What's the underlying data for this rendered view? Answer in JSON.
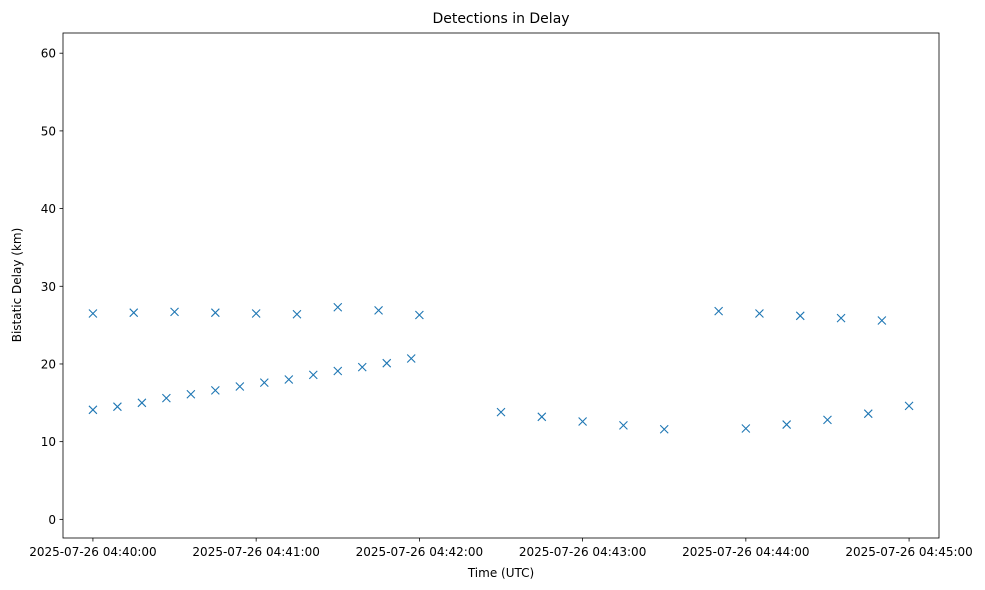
{
  "chart_data": {
    "type": "scatter",
    "title": "Detections in Delay",
    "xlabel": "Time (UTC)",
    "ylabel": "Bistatic Delay (km)",
    "x_unit": "time",
    "xlim": [
      "2025-07-26 04:39:49",
      "2025-07-26 04:45:11"
    ],
    "ylim": [
      -2.4,
      62.6
    ],
    "x_ticks": [
      "2025-07-26 04:40:00",
      "2025-07-26 04:41:00",
      "2025-07-26 04:42:00",
      "2025-07-26 04:43:00",
      "2025-07-26 04:44:00",
      "2025-07-26 04:45:00"
    ],
    "y_ticks": [
      0,
      10,
      20,
      30,
      40,
      50,
      60
    ],
    "marker": "x",
    "color": "#1f77b4",
    "grid": false,
    "series": [
      {
        "x": [
          "04:40:00",
          "04:40:09",
          "04:40:18",
          "04:40:27",
          "04:40:36",
          "04:40:45",
          "04:40:54",
          "04:41:03",
          "04:41:12",
          "04:41:21",
          "04:41:30",
          "04:41:39",
          "04:41:48",
          "04:41:57"
        ],
        "y": [
          14.1,
          14.5,
          15.0,
          15.6,
          16.1,
          16.6,
          17.1,
          17.6,
          18.0,
          18.6,
          19.1,
          19.6,
          20.1,
          20.7
        ]
      },
      {
        "x": [
          "04:40:00",
          "04:40:15",
          "04:40:30",
          "04:40:45",
          "04:41:00",
          "04:41:15",
          "04:41:30",
          "04:41:45",
          "04:42:00"
        ],
        "y": [
          26.5,
          26.6,
          26.7,
          26.6,
          26.5,
          26.4,
          27.3,
          26.9,
          26.3
        ]
      },
      {
        "x": [
          "04:42:30",
          "04:42:45",
          "04:43:00",
          "04:43:15",
          "04:43:30"
        ],
        "y": [
          13.8,
          13.2,
          12.6,
          12.1,
          11.6
        ]
      },
      {
        "x": [
          "04:44:00",
          "04:44:15",
          "04:44:30",
          "04:44:45",
          "04:45:00"
        ],
        "y": [
          11.7,
          12.2,
          12.8,
          13.6,
          14.6
        ]
      },
      {
        "x": [
          "04:43:50",
          "04:44:05",
          "04:44:20",
          "04:44:35",
          "04:44:50"
        ],
        "y": [
          26.8,
          26.5,
          26.2,
          25.9,
          25.6
        ]
      }
    ]
  }
}
